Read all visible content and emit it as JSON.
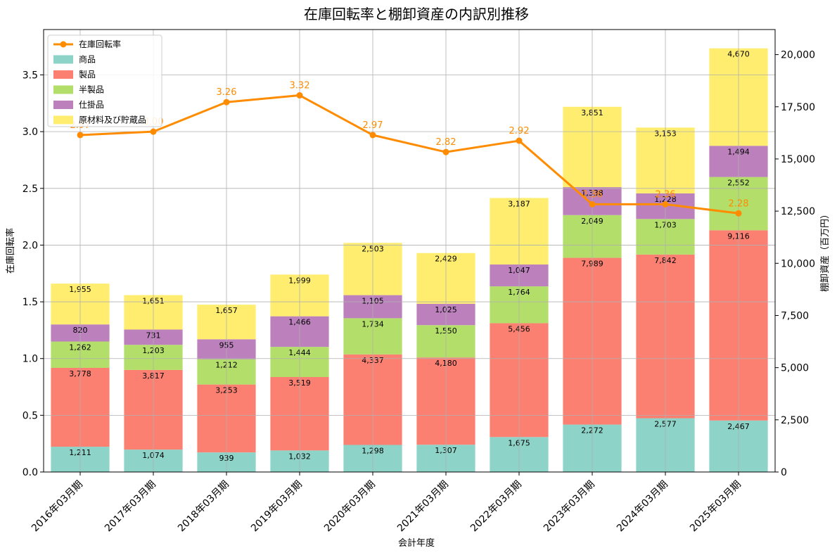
{
  "chart_data": {
    "type": "bar",
    "title": "在庫回転率と棚卸資産の内訳別推移",
    "xlabel": "会計年度",
    "ylabel_left": "在庫回転率",
    "ylabel_right": "棚卸資産（百万円）",
    "categories": [
      "2016年03月期",
      "2017年03月期",
      "2018年03月期",
      "2019年03月期",
      "2020年03月期",
      "2021年03月期",
      "2022年03月期",
      "2023年03月期",
      "2024年03月期",
      "2025年03月期"
    ],
    "ylim_left": [
      0,
      3.9
    ],
    "ylim_right": [
      0,
      21200
    ],
    "yticks_left": [
      "0.0",
      "0.5",
      "1.0",
      "1.5",
      "2.0",
      "2.5",
      "3.0",
      "3.5"
    ],
    "yticks_right": [
      "0",
      "2,500",
      "5,000",
      "7,500",
      "10,000",
      "12,500",
      "15,000",
      "17,500",
      "20,000"
    ],
    "grid": true,
    "legend_position": "top-left",
    "series": [
      {
        "name": "商品",
        "color": "#8dd3c7",
        "values": [
          1211,
          1074,
          939,
          1032,
          1298,
          1307,
          1675,
          2272,
          2577,
          2467
        ]
      },
      {
        "name": "製品",
        "color": "#fb8072",
        "values": [
          3778,
          3817,
          3253,
          3519,
          4337,
          4180,
          5456,
          7989,
          7842,
          9116
        ]
      },
      {
        "name": "半製品",
        "color": "#b3de69",
        "values": [
          1262,
          1203,
          1212,
          1444,
          1734,
          1550,
          1764,
          2049,
          1703,
          2552
        ]
      },
      {
        "name": "仕掛品",
        "color": "#bc80bd",
        "values": [
          820,
          731,
          955,
          1466,
          1105,
          1025,
          1047,
          1338,
          1228,
          1494
        ]
      },
      {
        "name": "原材料及び貯蔵品",
        "color": "#ffed6f",
        "values": [
          1955,
          1651,
          1657,
          1999,
          2503,
          2429,
          3187,
          3851,
          3153,
          4670
        ]
      }
    ],
    "line": {
      "name": "在庫回転率",
      "color": "#ff8c00",
      "values": [
        2.97,
        3.0,
        3.26,
        3.32,
        2.97,
        2.82,
        2.92,
        2.36,
        2.36,
        2.28
      ]
    }
  }
}
